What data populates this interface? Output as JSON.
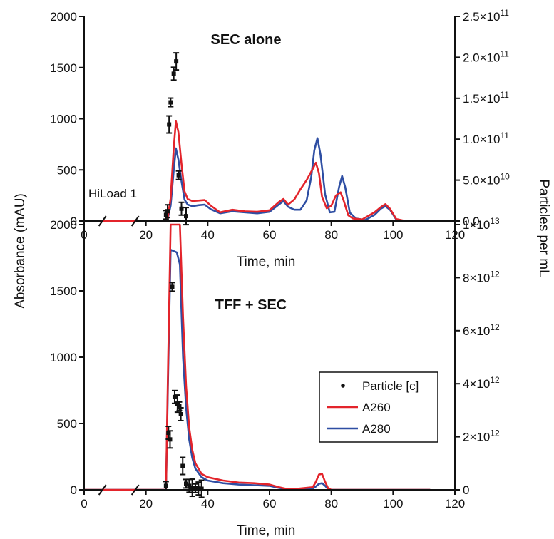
{
  "chart_data": [
    {
      "type": "line",
      "title": "SEC alone",
      "xlabel": "Time, min",
      "ylabel": "Absorbance (mAU)",
      "y2label": "Particles per mL",
      "annotation": "HiLoad 1",
      "xlim": [
        0,
        120
      ],
      "x_break": [
        8,
        20
      ],
      "xticks": [
        0,
        20,
        40,
        60,
        80,
        100,
        120
      ],
      "ylim": [
        0,
        2000
      ],
      "yticks": [
        0,
        500,
        1000,
        1500,
        2000
      ],
      "y2lim": [
        0,
        250000000000
      ],
      "y2ticks": [
        {
          "mant": "0.0",
          "exp": ""
        },
        {
          "mant": "5.0×10",
          "exp": "10"
        },
        {
          "mant": "1.0×10",
          "exp": "11"
        },
        {
          "mant": "1.5×10",
          "exp": "11"
        },
        {
          "mant": "2.0×10",
          "exp": "11"
        },
        {
          "mant": "2.5×10",
          "exp": "11"
        }
      ],
      "series": [
        {
          "name": "A260",
          "color": "#e3242b",
          "x": [
            0,
            8,
            20,
            26,
            27,
            28,
            29,
            29.7,
            30.5,
            31.5,
            32.5,
            33.5,
            35,
            37,
            39,
            41,
            44,
            48,
            52,
            56,
            60,
            63,
            64.5,
            66,
            68,
            70,
            72,
            74,
            75,
            76,
            77,
            78.5,
            80,
            81.5,
            83,
            84,
            85.5,
            87,
            90,
            94,
            96,
            97.5,
            99,
            101,
            104,
            112
          ],
          "y": [
            0,
            0,
            0,
            0,
            20,
            220,
            720,
            975,
            870,
            560,
            290,
            215,
            195,
            200,
            205,
            150,
            85,
            110,
            95,
            90,
            105,
            185,
            215,
            160,
            210,
            310,
            400,
            510,
            570,
            470,
            235,
            125,
            150,
            250,
            280,
            200,
            55,
            25,
            15,
            85,
            135,
            165,
            120,
            20,
            0,
            0
          ]
        },
        {
          "name": "A280",
          "color": "#2e4ea3",
          "x": [
            0,
            8,
            20,
            26,
            27,
            28,
            29,
            29.7,
            30.5,
            31.5,
            32.5,
            33.5,
            35,
            37,
            39,
            41,
            44,
            48,
            52,
            56,
            60,
            63,
            64.5,
            66,
            68,
            70,
            72,
            73.5,
            74.5,
            75.5,
            76.5,
            78,
            79.5,
            81,
            82.5,
            83.5,
            84.5,
            86,
            88,
            91,
            94,
            96,
            97.5,
            99,
            101,
            104,
            112
          ],
          "y": [
            0,
            0,
            0,
            0,
            15,
            150,
            500,
            710,
            600,
            390,
            210,
            160,
            145,
            155,
            160,
            115,
            75,
            95,
            85,
            75,
            90,
            160,
            195,
            140,
            110,
            110,
            200,
            430,
            690,
            810,
            650,
            260,
            85,
            90,
            330,
            440,
            330,
            80,
            25,
            10,
            60,
            120,
            145,
            110,
            15,
            0,
            0
          ]
        },
        {
          "name": "Particle [c]",
          "type": "scatter",
          "color": "#111111",
          "axis": "right",
          "x": [
            26.5,
            27,
            27.5,
            28,
            29,
            29.8,
            30.6,
            31.5,
            33
          ],
          "y": [
            7500000000,
            12000000000,
            118000000000,
            145000000000,
            180000000000,
            195000000000,
            56000000000,
            15000000000,
            6000000000
          ]
        }
      ]
    },
    {
      "type": "line",
      "title": "TFF + SEC",
      "xlabel": "Time, min",
      "ylabel": "Absorbance (mAU)",
      "y2label": "Particles per mL",
      "xlim": [
        0,
        120
      ],
      "x_break": [
        8,
        20
      ],
      "xticks": [
        0,
        20,
        40,
        60,
        80,
        100,
        120
      ],
      "ylim": [
        0,
        2000
      ],
      "yticks": [
        0,
        500,
        1000,
        1500,
        2000
      ],
      "y2lim": [
        0,
        10000000000000
      ],
      "y2ticks": [
        {
          "mant": "0",
          "exp": ""
        },
        {
          "mant": "2×10",
          "exp": "12"
        },
        {
          "mant": "4×10",
          "exp": "12"
        },
        {
          "mant": "6×10",
          "exp": "12"
        },
        {
          "mant": "8×10",
          "exp": "12"
        },
        {
          "mant": "1×10",
          "exp": "13"
        }
      ],
      "legend": {
        "position": "right",
        "entries": [
          "Particle [c]",
          "A260",
          "A280"
        ]
      },
      "series": [
        {
          "name": "A260",
          "color": "#e3242b",
          "x": [
            0,
            8,
            20,
            26.5,
            27.2,
            28,
            31,
            32,
            33,
            34,
            35,
            36,
            38,
            40,
            45,
            50,
            55,
            60,
            63,
            66,
            68,
            70,
            72,
            74,
            75,
            76,
            77,
            78,
            79,
            80,
            112
          ],
          "y": [
            0,
            0,
            0,
            0,
            1000,
            2000,
            2000,
            1300,
            780,
            470,
            300,
            200,
            120,
            95,
            70,
            55,
            50,
            40,
            20,
            5,
            5,
            10,
            15,
            20,
            60,
            115,
            120,
            60,
            10,
            0,
            0
          ]
        },
        {
          "name": "A280",
          "color": "#2e4ea3",
          "x": [
            0,
            8,
            20,
            26.5,
            27.2,
            28,
            30,
            31,
            32,
            33,
            34,
            35,
            36,
            38,
            40,
            45,
            50,
            55,
            60,
            63,
            66,
            70,
            74,
            75,
            76,
            77,
            78,
            79,
            80,
            112
          ],
          "y": [
            0,
            0,
            0,
            0,
            900,
            1810,
            1790,
            1700,
            1000,
            620,
            380,
            240,
            160,
            95,
            70,
            50,
            40,
            35,
            30,
            15,
            3,
            5,
            10,
            25,
            45,
            50,
            30,
            5,
            0,
            0
          ]
        },
        {
          "name": "Particle [c]",
          "type": "scatter",
          "color": "#111111",
          "axis": "right",
          "x": [
            26.5,
            27.3,
            27.8,
            28.5,
            29.3,
            30.2,
            30.8,
            31.3,
            31.9,
            33,
            34,
            35,
            36,
            37,
            38
          ],
          "y": [
            150000000000,
            2150000000000,
            1900000000000,
            7650000000000,
            3500000000000,
            3250000000000,
            3150000000000,
            2850000000000,
            900000000000,
            230000000000,
            150000000000,
            80000000000,
            60000000000,
            50000000000,
            40000000000
          ]
        }
      ]
    }
  ]
}
